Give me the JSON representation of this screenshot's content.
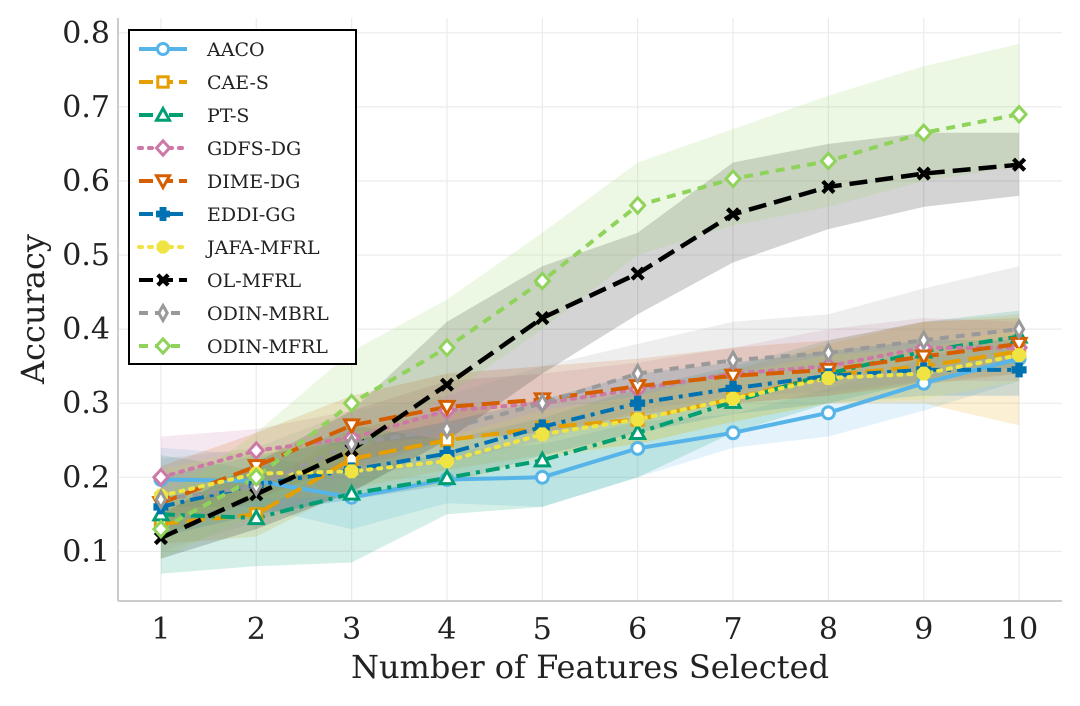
{
  "chart_data": {
    "type": "line",
    "title": "",
    "xlabel": "Number of Features Selected",
    "ylabel": "Accuracy",
    "x": [
      1,
      2,
      3,
      4,
      5,
      6,
      7,
      8,
      9,
      10
    ],
    "x_ticks": [
      "1",
      "2",
      "3",
      "4",
      "5",
      "6",
      "7",
      "8",
      "9",
      "10"
    ],
    "y_ticks": [
      "0.1",
      "0.2",
      "0.3",
      "0.4",
      "0.5",
      "0.6",
      "0.7",
      "0.8"
    ],
    "y_tick_values": [
      0.1,
      0.2,
      0.3,
      0.4,
      0.5,
      0.6,
      0.7,
      0.8
    ],
    "xlim": [
      0.55,
      10.45
    ],
    "ylim": [
      0.033,
      0.82
    ],
    "grid": true,
    "legend_position": "top-left",
    "series": [
      {
        "name": "AACO",
        "color": "#56B4E9",
        "dash": "solid",
        "marker": "circle-open",
        "values": [
          0.197,
          0.195,
          0.173,
          0.197,
          0.2,
          0.239,
          0.26,
          0.287,
          0.327,
          0.36
        ],
        "lower": [
          0.16,
          0.16,
          0.13,
          0.165,
          0.16,
          0.2,
          0.24,
          0.255,
          0.29,
          0.33
        ],
        "upper": [
          0.24,
          0.23,
          0.205,
          0.235,
          0.245,
          0.275,
          0.285,
          0.32,
          0.36,
          0.395
        ]
      },
      {
        "name": "CAE-S",
        "color": "#E69F00",
        "dash": "long-dash",
        "marker": "square-open",
        "values": [
          0.137,
          0.15,
          0.225,
          0.25,
          0.267,
          0.278,
          0.306,
          0.338,
          0.35,
          0.37
        ],
        "lower": [
          0.11,
          0.12,
          0.185,
          0.21,
          0.23,
          0.245,
          0.275,
          0.3,
          0.3,
          0.27
        ],
        "upper": [
          0.165,
          0.185,
          0.265,
          0.29,
          0.305,
          0.315,
          0.345,
          0.38,
          0.41,
          0.42
        ]
      },
      {
        "name": "PT-S",
        "color": "#009E73",
        "dash": "dash-dot",
        "marker": "triangle-open",
        "values": [
          0.15,
          0.145,
          0.178,
          0.199,
          0.223,
          0.26,
          0.302,
          0.34,
          0.37,
          0.39
        ],
        "lower": [
          0.07,
          0.08,
          0.085,
          0.15,
          0.16,
          0.2,
          0.26,
          0.3,
          0.33,
          0.35
        ],
        "upper": [
          0.23,
          0.21,
          0.27,
          0.25,
          0.28,
          0.32,
          0.35,
          0.385,
          0.41,
          0.425
        ]
      },
      {
        "name": "GDFS-DG",
        "color": "#CC79A7",
        "dash": "dotted",
        "marker": "diamond-open",
        "values": [
          0.2,
          0.236,
          0.253,
          0.29,
          0.3,
          0.319,
          0.34,
          0.35,
          0.375,
          0.375
        ],
        "lower": [
          0.14,
          0.19,
          0.21,
          0.25,
          0.26,
          0.28,
          0.3,
          0.31,
          0.33,
          0.33
        ],
        "upper": [
          0.255,
          0.265,
          0.29,
          0.33,
          0.34,
          0.355,
          0.375,
          0.4,
          0.415,
          0.41
        ]
      },
      {
        "name": "DIME-DG",
        "color": "#D55E00",
        "dash": "long-dash",
        "marker": "triangle-down-open",
        "values": [
          0.165,
          0.215,
          0.27,
          0.295,
          0.305,
          0.323,
          0.337,
          0.345,
          0.363,
          0.38
        ],
        "lower": [
          0.12,
          0.17,
          0.22,
          0.25,
          0.26,
          0.285,
          0.3,
          0.31,
          0.325,
          0.34
        ],
        "upper": [
          0.215,
          0.26,
          0.31,
          0.34,
          0.35,
          0.36,
          0.375,
          0.385,
          0.41,
          0.415
        ]
      },
      {
        "name": "EDDI-GG",
        "color": "#0072B2",
        "dash": "dash-dot",
        "marker": "plus-filled",
        "values": [
          0.16,
          0.19,
          0.21,
          0.232,
          0.268,
          0.3,
          0.32,
          0.337,
          0.345,
          0.345
        ],
        "lower": [
          0.12,
          0.15,
          0.17,
          0.19,
          0.23,
          0.26,
          0.285,
          0.3,
          0.31,
          0.31
        ],
        "upper": [
          0.2,
          0.23,
          0.25,
          0.275,
          0.305,
          0.34,
          0.355,
          0.37,
          0.385,
          0.385
        ]
      },
      {
        "name": "JAFA-MFRL",
        "color": "#F0E442",
        "dash": "dotted",
        "marker": "octagon-filled",
        "values": [
          0.175,
          0.205,
          0.208,
          0.222,
          0.258,
          0.278,
          0.306,
          0.334,
          0.34,
          0.365
        ],
        "lower": [
          0.14,
          0.17,
          0.175,
          0.19,
          0.225,
          0.245,
          0.275,
          0.3,
          0.305,
          0.33
        ],
        "upper": [
          0.21,
          0.24,
          0.245,
          0.255,
          0.29,
          0.31,
          0.34,
          0.365,
          0.375,
          0.4
        ]
      },
      {
        "name": "OL-MFRL",
        "color": "#000000",
        "dash": "long-dash",
        "marker": "x",
        "values": [
          0.118,
          0.177,
          0.237,
          0.325,
          0.415,
          0.475,
          0.555,
          0.592,
          0.61,
          0.622
        ],
        "lower": [
          0.09,
          0.13,
          0.18,
          0.25,
          0.34,
          0.42,
          0.49,
          0.535,
          0.565,
          0.58
        ],
        "upper": [
          0.15,
          0.22,
          0.29,
          0.41,
          0.485,
          0.53,
          0.625,
          0.65,
          0.665,
          0.665
        ]
      },
      {
        "name": "ODIN-MBRL",
        "color": "#999999",
        "dash": "short-dash",
        "marker": "thin-diamond-open",
        "values": [
          0.17,
          0.188,
          0.245,
          0.265,
          0.3,
          0.34,
          0.358,
          0.368,
          0.385,
          0.4
        ],
        "lower": [
          0.1,
          0.14,
          0.2,
          0.22,
          0.25,
          0.29,
          0.31,
          0.315,
          0.33,
          0.34
        ],
        "upper": [
          0.225,
          0.24,
          0.29,
          0.31,
          0.35,
          0.38,
          0.41,
          0.42,
          0.455,
          0.485
        ]
      },
      {
        "name": "ODIN-MFRL",
        "color": "#8FD35A",
        "dash": "short-dash",
        "marker": "diamond-open",
        "values": [
          0.13,
          0.2,
          0.3,
          0.375,
          0.465,
          0.567,
          0.603,
          0.627,
          0.665,
          0.69
        ],
        "lower": [
          0.09,
          0.15,
          0.23,
          0.31,
          0.4,
          0.5,
          0.54,
          0.565,
          0.6,
          0.62
        ],
        "upper": [
          0.17,
          0.26,
          0.37,
          0.44,
          0.53,
          0.625,
          0.67,
          0.715,
          0.755,
          0.785
        ]
      }
    ]
  }
}
